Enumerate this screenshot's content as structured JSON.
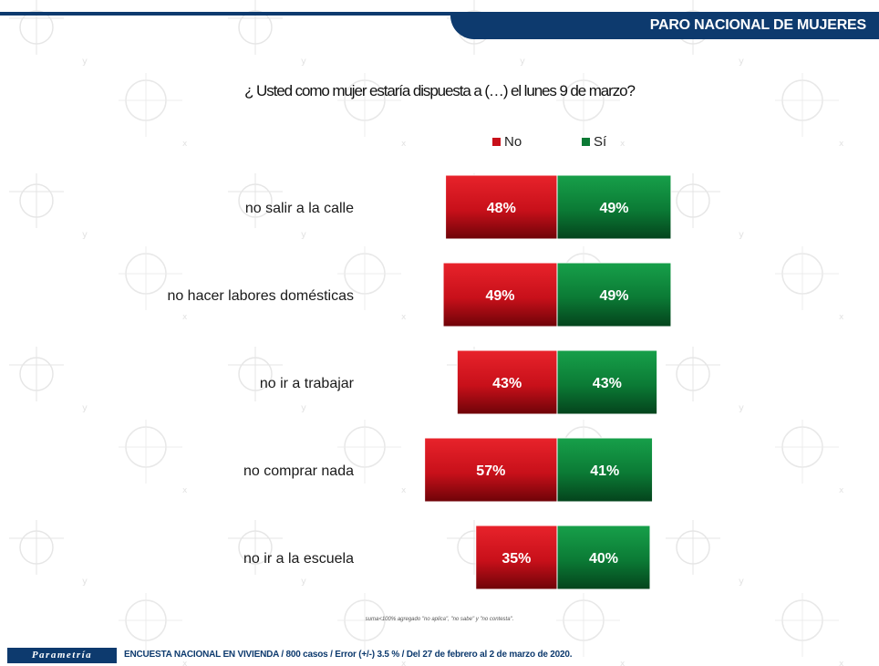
{
  "header": {
    "title": "PARO NACIONAL DE MUJERES"
  },
  "question": "¿ Usted como mujer estaría dispuesta a (…) el lunes 9 de marzo?",
  "colors": {
    "no": "#c8101a",
    "si": "#0b7a35",
    "brand": "#0d3a6e"
  },
  "chart_data": {
    "type": "bar",
    "orientation": "horizontal-diverging",
    "categories": [
      "no salir a la calle",
      "no hacer labores domésticas",
      "no ir a trabajar",
      "no comprar nada",
      "no ir a la escuela"
    ],
    "series": [
      {
        "name": "No",
        "values": [
          48,
          49,
          43,
          57,
          35
        ],
        "labels": [
          "48%",
          "49%",
          "43%",
          "57%",
          "35%"
        ]
      },
      {
        "name": "Sí",
        "values": [
          49,
          49,
          43,
          41,
          40
        ],
        "labels": [
          "49%",
          "49%",
          "43%",
          "41%",
          "40%"
        ]
      }
    ],
    "unit": "%",
    "legend": "top-center",
    "grid": false
  },
  "footnote": "suma<100% agregado \"no aplica\", \"no sabe\" y \"no contesta\".",
  "footer": {
    "brand": "Parametría",
    "text": "ENCUESTA NACIONAL EN VIVIENDA / 800 casos / Error (+/-) 3.5 % / Del 27 de febrero al 2 de marzo de 2020."
  }
}
